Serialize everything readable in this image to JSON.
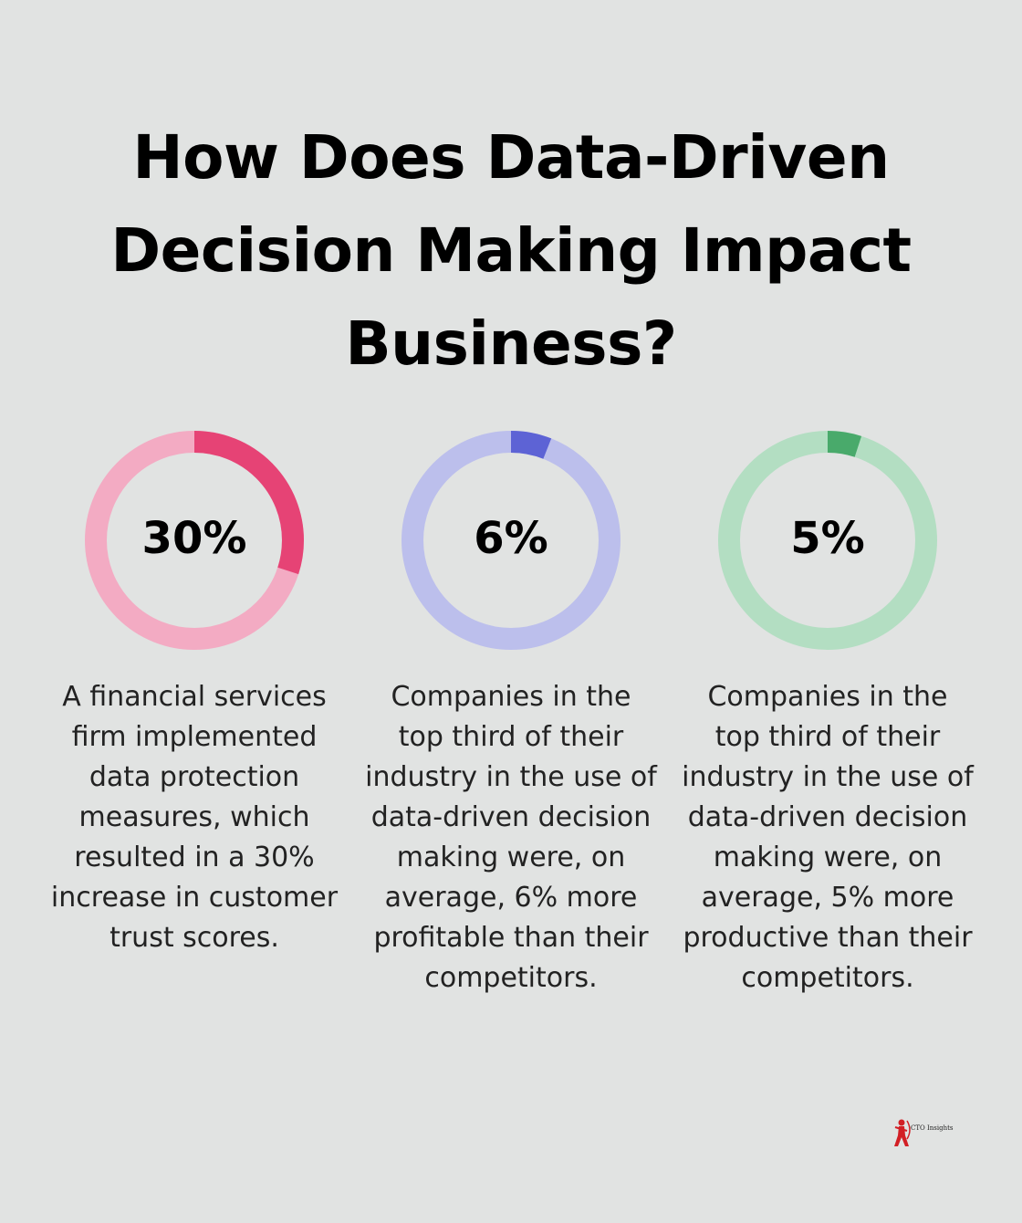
{
  "title": "How Does Data-Driven Decision Making Impact Business?",
  "chart_data": [
    {
      "type": "donut",
      "value": 30,
      "value_label": "30%",
      "description": "A financial services firm implemented data protection measures, which resulted in a 30% increase in customer trust scores.",
      "colors": {
        "fill": "#e64375",
        "track": "#f3abc3"
      }
    },
    {
      "type": "donut",
      "value": 6,
      "value_label": "6%",
      "description": "Companies in the top third of their industry in the use of data-driven decision making were, on average, 6% more profitable than their competitors.",
      "colors": {
        "fill": "#5d63d5",
        "track": "#bcbfec"
      }
    },
    {
      "type": "donut",
      "value": 5,
      "value_label": "5%",
      "description": "Companies in the top third of their industry in the use of data-driven decision making were, on average, 5% more productive than their competitors.",
      "colors": {
        "fill": "#49aa6b",
        "track": "#b3dec2"
      }
    }
  ],
  "logo": {
    "text": "CTO Insights",
    "icon": "archer-icon",
    "color": "#d21f25"
  }
}
